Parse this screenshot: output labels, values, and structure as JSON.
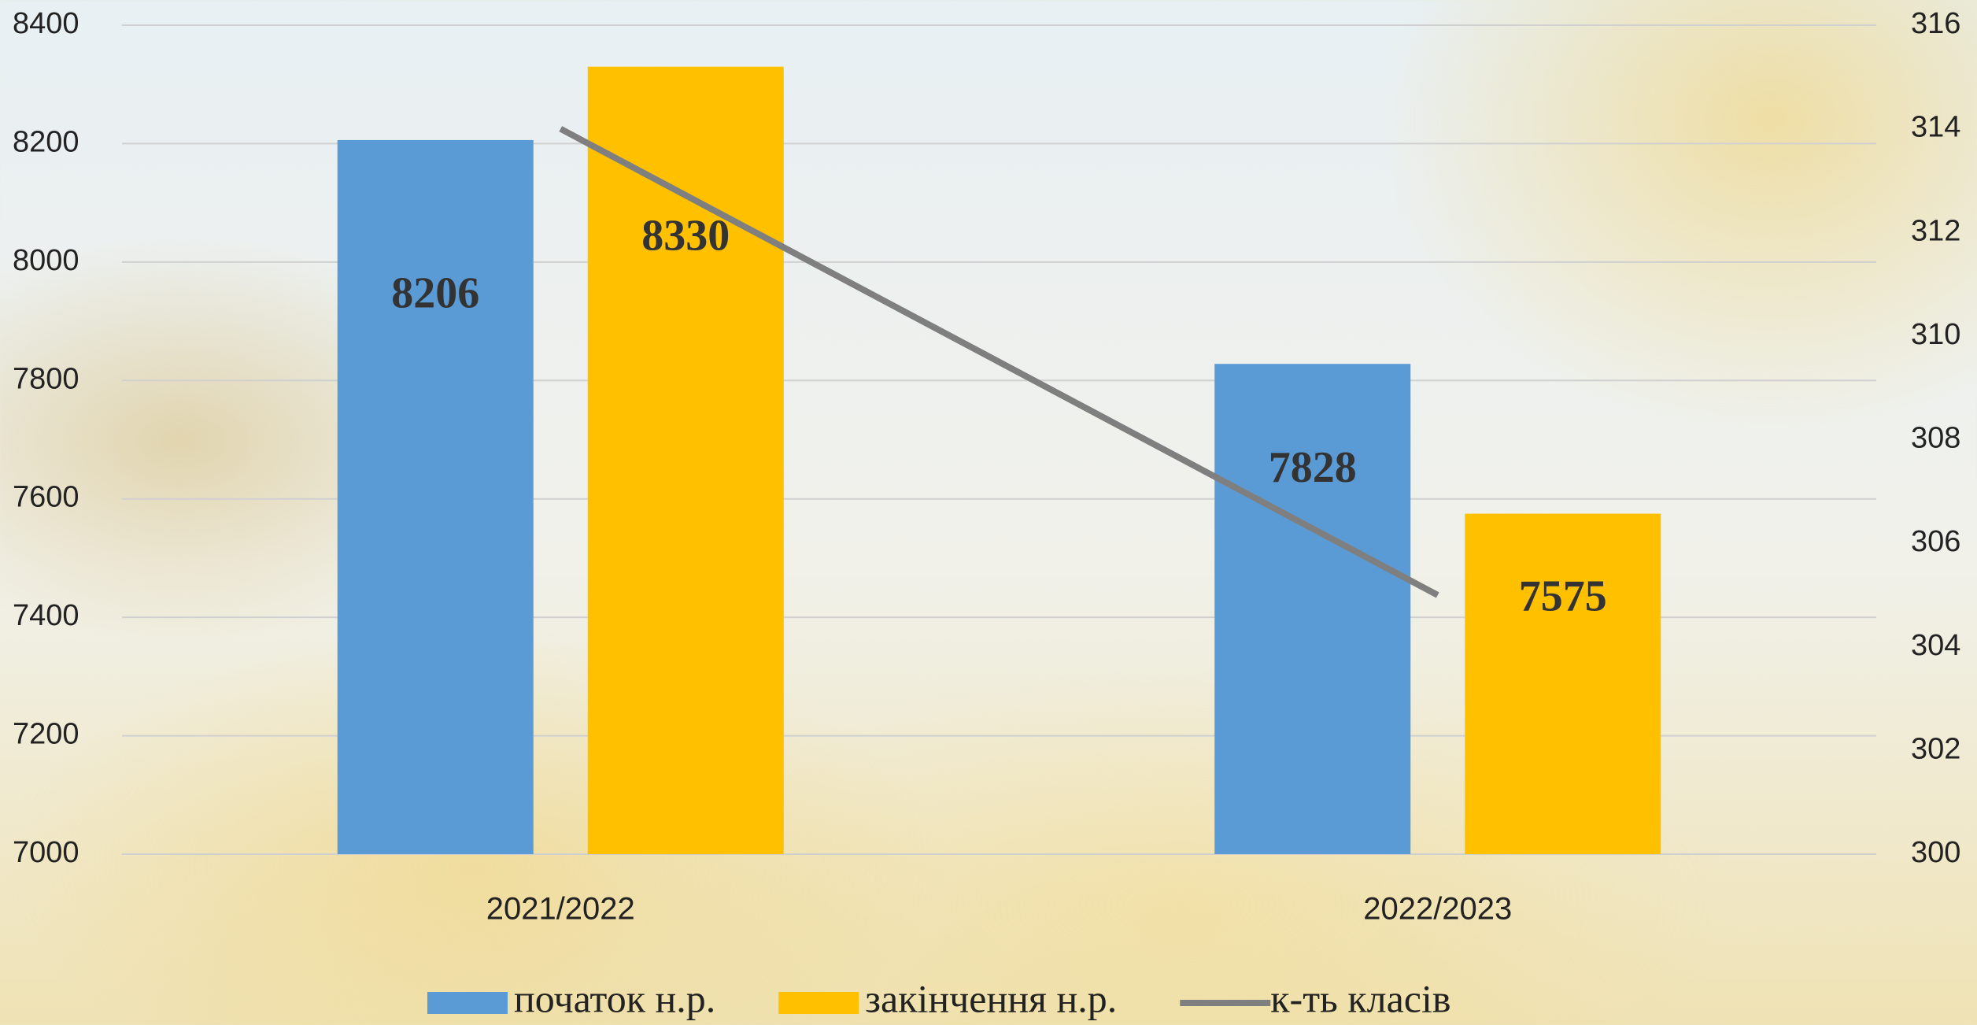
{
  "chart_data": {
    "type": "bar",
    "categories": [
      "2021/2022",
      "2022/2023"
    ],
    "series": [
      {
        "name": "початок н.р.",
        "color": "#5b9bd5",
        "values": [
          8206,
          7828
        ]
      },
      {
        "name": "закінчення н.р.",
        "color": "#ffc000",
        "values": [
          8330,
          7575
        ]
      },
      {
        "name": "к-ть класів",
        "color": "#7f7f7f",
        "values": [
          314,
          305
        ],
        "type": "line",
        "axis": "y2"
      }
    ],
    "ylim": [
      7000,
      8400
    ],
    "yticks": [
      7000,
      7200,
      7400,
      7600,
      7800,
      8000,
      8200,
      8400
    ],
    "y2lim": [
      300,
      316
    ],
    "y2ticks": [
      300,
      302,
      304,
      306,
      308,
      310,
      312,
      314,
      316
    ],
    "grid": true,
    "legend": "bottom"
  }
}
